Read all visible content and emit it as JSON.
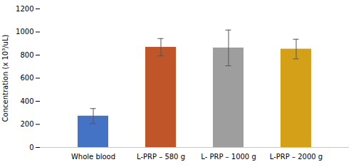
{
  "chart_data": {
    "type": "bar",
    "categories": [
      "Whole blood",
      "L-PRP – 580 g",
      "L- PRP – 1000 g",
      "L-PRP – 2000 g"
    ],
    "values": [
      272,
      868,
      862,
      852
    ],
    "errors": [
      65,
      75,
      155,
      85
    ],
    "colors": [
      "#4472C4",
      "#C0552A",
      "#9E9E9E",
      "#D4A017"
    ],
    "error_color": "#555555",
    "ylabel": "Concentration (x 10³/uL)",
    "ylim": [
      0,
      1200
    ],
    "yticks": [
      0,
      200,
      400,
      600,
      800,
      1000,
      1200
    ],
    "grid": false
  }
}
